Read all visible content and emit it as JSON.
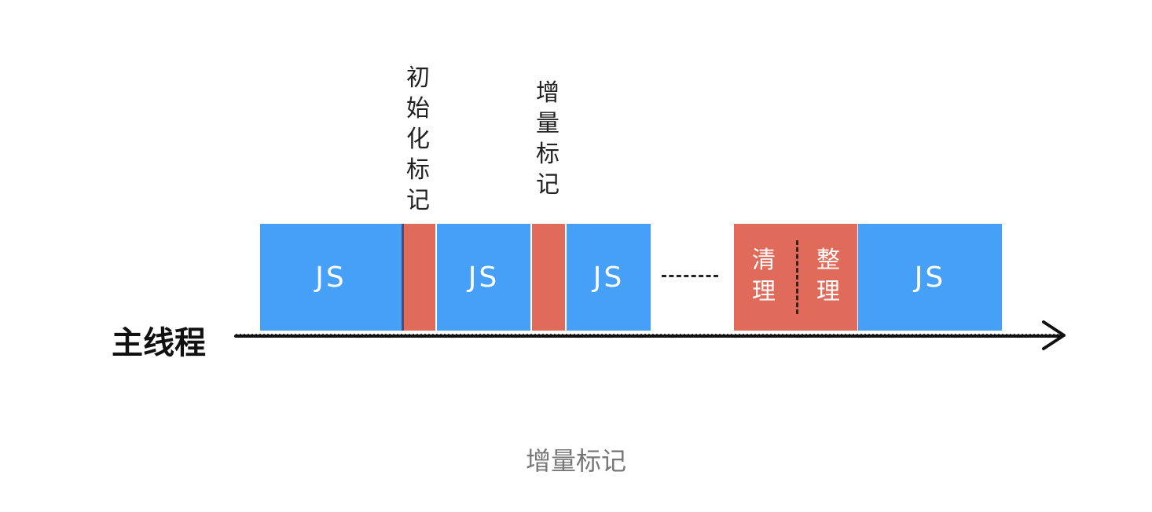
{
  "labels": {
    "initial_mark": "初始化标记",
    "incremental_mark": "增量标记"
  },
  "blocks": {
    "js": "JS",
    "clean": "清理",
    "compact": "整理"
  },
  "ellipsis": "-------",
  "thread": "主线程",
  "caption": "增量标记",
  "colors": {
    "js_block": "#46a0f8",
    "gc_block": "#e06b5b",
    "caption": "#777777"
  }
}
